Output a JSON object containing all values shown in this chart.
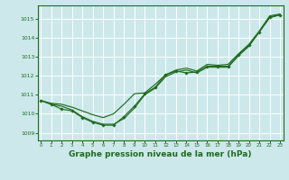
{
  "bg_color": "#cce8ea",
  "grid_color": "#ffffff",
  "line_color": "#1e6b1e",
  "xlabel": "Graphe pression niveau de la mer (hPa)",
  "xlabel_color": "#1e6b1e",
  "xlabel_fontsize": 6.5,
  "ytick_labels": [
    1009,
    1010,
    1011,
    1012,
    1013,
    1014,
    1015
  ],
  "xtick_labels": [
    0,
    1,
    2,
    3,
    4,
    5,
    6,
    7,
    8,
    9,
    10,
    11,
    12,
    13,
    14,
    15,
    16,
    17,
    18,
    19,
    20,
    21,
    22,
    23
  ],
  "ylim": [
    1008.6,
    1015.7
  ],
  "xlim": [
    -0.3,
    23.3
  ],
  "series": {
    "upper_smooth": [
      1010.7,
      1010.55,
      1010.5,
      1010.35,
      1010.15,
      1009.95,
      1009.8,
      1010.0,
      1010.5,
      1011.05,
      1011.1,
      1011.55,
      1012.05,
      1012.3,
      1012.4,
      1012.25,
      1012.6,
      1012.55,
      1012.6,
      1013.15,
      1013.65,
      1014.35,
      1015.15,
      1015.25
    ],
    "lower_smooth": [
      1010.7,
      1010.5,
      1010.4,
      1010.2,
      1009.85,
      1009.6,
      1009.45,
      1009.45,
      1009.75,
      1010.3,
      1011.0,
      1011.35,
      1011.95,
      1012.2,
      1012.3,
      1012.15,
      1012.45,
      1012.45,
      1012.45,
      1013.05,
      1013.55,
      1014.3,
      1015.05,
      1015.2
    ],
    "marker_line": [
      1010.7,
      1010.5,
      1010.25,
      1010.15,
      1009.8,
      1009.55,
      1009.4,
      1009.4,
      1009.85,
      1010.4,
      1011.05,
      1011.4,
      1012.05,
      1012.25,
      1012.15,
      1012.2,
      1012.5,
      1012.5,
      1012.5,
      1013.1,
      1013.6,
      1014.3,
      1015.1,
      1015.2
    ]
  }
}
